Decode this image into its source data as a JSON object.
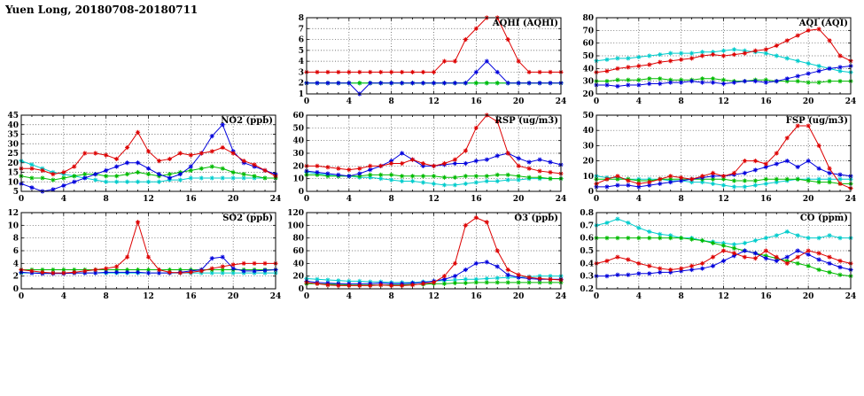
{
  "header": {
    "title": "Yuen Long, 20180708-20180711"
  },
  "colors": {
    "red": "#dd0000",
    "blue": "#0000dd",
    "green": "#00bb00",
    "cyan": "#00cccc",
    "axis": "#000000",
    "background": "#ffffff"
  },
  "chart_data": [
    {
      "id": "aqhi",
      "title": "AQHI (AQHI)",
      "type": "line",
      "row": 0,
      "col": 1,
      "ylim": [
        1,
        8
      ],
      "yticks": [
        1,
        2,
        3,
        4,
        5,
        6,
        7,
        8
      ],
      "xticks": [
        0,
        4,
        8,
        12,
        16,
        20,
        24
      ],
      "grid": "dotted",
      "series": [
        {
          "name": "cyan",
          "color": "#00cccc",
          "values": [
            2,
            2,
            2,
            2,
            2,
            2,
            2,
            2,
            2,
            2,
            2,
            2,
            2,
            2,
            2,
            2,
            2,
            2,
            2,
            2,
            2,
            2,
            2,
            2,
            2
          ]
        },
        {
          "name": "green",
          "color": "#00bb00",
          "values": [
            2,
            2,
            2,
            2,
            2,
            2,
            2,
            2,
            2,
            2,
            2,
            2,
            2,
            2,
            2,
            2,
            2,
            2,
            2,
            2,
            2,
            2,
            2,
            2,
            2
          ]
        },
        {
          "name": "blue",
          "color": "#0000dd",
          "values": [
            2,
            2,
            2,
            2,
            2,
            1,
            2,
            2,
            2,
            2,
            2,
            2,
            2,
            2,
            2,
            2,
            3,
            4,
            3,
            2,
            2,
            2,
            2,
            2,
            2
          ]
        },
        {
          "name": "red",
          "color": "#dd0000",
          "values": [
            3,
            3,
            3,
            3,
            3,
            3,
            3,
            3,
            3,
            3,
            3,
            3,
            3,
            4,
            4,
            6,
            7,
            8,
            8,
            6,
            4,
            3,
            3,
            3,
            3
          ]
        }
      ]
    },
    {
      "id": "aqi",
      "title": "AQI (AQI)",
      "type": "line",
      "row": 0,
      "col": 2,
      "ylim": [
        20,
        80
      ],
      "yticks": [
        20,
        30,
        40,
        50,
        60,
        70,
        80
      ],
      "xticks": [
        0,
        4,
        8,
        12,
        16,
        20,
        24
      ],
      "grid": "dotted",
      "series": [
        {
          "name": "cyan",
          "color": "#00cccc",
          "values": [
            46,
            47,
            48,
            48,
            49,
            50,
            51,
            52,
            52,
            52,
            53,
            53,
            54,
            55,
            54,
            53,
            52,
            50,
            48,
            46,
            44,
            42,
            40,
            38,
            37
          ]
        },
        {
          "name": "green",
          "color": "#00bb00",
          "values": [
            30,
            30,
            31,
            31,
            31,
            32,
            32,
            31,
            31,
            31,
            32,
            32,
            31,
            30,
            30,
            31,
            31,
            30,
            30,
            30,
            29,
            29,
            30,
            30,
            30
          ]
        },
        {
          "name": "blue",
          "color": "#0000dd",
          "values": [
            27,
            27,
            26,
            27,
            27,
            28,
            28,
            29,
            29,
            30,
            29,
            29,
            28,
            29,
            30,
            30,
            29,
            30,
            32,
            34,
            36,
            38,
            40,
            41,
            42
          ]
        },
        {
          "name": "red",
          "color": "#dd0000",
          "values": [
            37,
            38,
            40,
            41,
            42,
            43,
            45,
            46,
            47,
            48,
            50,
            51,
            50,
            51,
            52,
            54,
            55,
            58,
            62,
            66,
            70,
            71,
            62,
            50,
            46
          ]
        }
      ]
    },
    {
      "id": "no2",
      "title": "NO2 (ppb)",
      "type": "line",
      "row": 1,
      "col": 0,
      "ylim": [
        5,
        45
      ],
      "yticks": [
        5,
        10,
        15,
        20,
        25,
        30,
        35,
        40,
        45
      ],
      "xticks": [
        0,
        4,
        8,
        12,
        16,
        20,
        24
      ],
      "grid": "dotted",
      "series": [
        {
          "name": "cyan",
          "color": "#00cccc",
          "values": [
            21,
            19,
            17,
            15,
            14,
            13,
            12,
            11,
            10,
            10,
            10,
            10,
            10,
            10,
            11,
            11,
            12,
            12,
            12,
            12,
            12,
            12,
            12,
            12,
            12
          ]
        },
        {
          "name": "green",
          "color": "#00bb00",
          "values": [
            13,
            12,
            12,
            11,
            12,
            13,
            14,
            14,
            13,
            13,
            14,
            15,
            14,
            13,
            14,
            15,
            16,
            17,
            18,
            17,
            15,
            14,
            13,
            12,
            12
          ]
        },
        {
          "name": "blue",
          "color": "#0000dd",
          "values": [
            9,
            7,
            5,
            6,
            8,
            10,
            12,
            14,
            16,
            18,
            20,
            20,
            17,
            14,
            12,
            14,
            18,
            25,
            34,
            40,
            26,
            20,
            18,
            16,
            14
          ]
        },
        {
          "name": "red",
          "color": "#dd0000",
          "values": [
            17,
            17,
            16,
            14,
            15,
            18,
            25,
            25,
            24,
            22,
            28,
            36,
            26,
            21,
            22,
            25,
            24,
            25,
            26,
            28,
            25,
            21,
            19,
            16,
            13
          ]
        }
      ]
    },
    {
      "id": "rsp",
      "title": "RSP (ug/m3)",
      "type": "line",
      "row": 1,
      "col": 1,
      "ylim": [
        0,
        60
      ],
      "yticks": [
        0,
        10,
        20,
        30,
        40,
        50,
        60
      ],
      "xticks": [
        0,
        4,
        8,
        12,
        16,
        20,
        24
      ],
      "grid": "dotted",
      "series": [
        {
          "name": "cyan",
          "color": "#00cccc",
          "values": [
            15,
            14,
            13,
            12,
            12,
            11,
            11,
            10,
            9,
            8,
            8,
            7,
            6,
            5,
            5,
            6,
            7,
            8,
            8,
            9,
            9,
            10,
            10,
            10,
            10
          ]
        },
        {
          "name": "green",
          "color": "#00bb00",
          "values": [
            13,
            13,
            12,
            12,
            12,
            12,
            13,
            13,
            13,
            12,
            12,
            12,
            12,
            11,
            11,
            12,
            12,
            12,
            13,
            13,
            12,
            11,
            11,
            10,
            10
          ]
        },
        {
          "name": "blue",
          "color": "#0000dd",
          "values": [
            16,
            15,
            14,
            13,
            12,
            14,
            17,
            20,
            24,
            30,
            25,
            20,
            20,
            21,
            22,
            22,
            24,
            25,
            28,
            30,
            26,
            23,
            25,
            23,
            21
          ]
        },
        {
          "name": "red",
          "color": "#dd0000",
          "values": [
            20,
            20,
            19,
            18,
            17,
            18,
            20,
            20,
            22,
            22,
            25,
            22,
            20,
            22,
            25,
            32,
            50,
            60,
            55,
            30,
            20,
            18,
            16,
            15,
            14
          ]
        }
      ]
    },
    {
      "id": "fsp",
      "title": "FSP (ug/m3)",
      "type": "line",
      "row": 1,
      "col": 2,
      "ylim": [
        0,
        50
      ],
      "yticks": [
        0,
        10,
        20,
        30,
        40,
        50
      ],
      "xticks": [
        0,
        4,
        8,
        12,
        16,
        20,
        24
      ],
      "grid": "dotted",
      "series": [
        {
          "name": "cyan",
          "color": "#00cccc",
          "values": [
            10,
            9,
            9,
            8,
            8,
            8,
            8,
            7,
            7,
            6,
            6,
            5,
            4,
            3,
            3,
            4,
            5,
            6,
            7,
            8,
            8,
            8,
            8,
            8,
            8
          ]
        },
        {
          "name": "green",
          "color": "#00bb00",
          "values": [
            8,
            8,
            8,
            8,
            7,
            7,
            8,
            8,
            8,
            8,
            8,
            8,
            8,
            7,
            7,
            7,
            8,
            8,
            8,
            8,
            7,
            6,
            6,
            5,
            5
          ]
        },
        {
          "name": "blue",
          "color": "#0000dd",
          "values": [
            3,
            3,
            4,
            4,
            3,
            4,
            5,
            6,
            7,
            8,
            9,
            10,
            10,
            11,
            12,
            14,
            16,
            18,
            20,
            16,
            20,
            15,
            12,
            11,
            10
          ]
        },
        {
          "name": "red",
          "color": "#dd0000",
          "values": [
            5,
            8,
            10,
            7,
            5,
            6,
            8,
            10,
            9,
            8,
            10,
            12,
            10,
            12,
            20,
            20,
            18,
            25,
            35,
            43,
            43,
            30,
            15,
            5,
            2
          ]
        }
      ]
    },
    {
      "id": "so2",
      "title": "SO2 (ppb)",
      "type": "line",
      "row": 2,
      "col": 0,
      "ylim": [
        0,
        12
      ],
      "yticks": [
        0,
        2,
        4,
        6,
        8,
        10,
        12
      ],
      "xticks": [
        0,
        4,
        8,
        12,
        16,
        20,
        24
      ],
      "grid": "dotted",
      "series": [
        {
          "name": "cyan",
          "color": "#00cccc",
          "values": [
            2.5,
            2.5,
            2.5,
            2.5,
            2.5,
            2.5,
            2.5,
            2.5,
            2.5,
            2.5,
            2.5,
            2.5,
            2.5,
            2.5,
            2.5,
            2.5,
            2.5,
            2.5,
            2.5,
            2.5,
            2.5,
            2.5,
            2.5,
            2.5,
            2.5
          ]
        },
        {
          "name": "green",
          "color": "#00bb00",
          "values": [
            3,
            3,
            3,
            3,
            3,
            3,
            3,
            3,
            3,
            3,
            3,
            3,
            3,
            3,
            3,
            3,
            3,
            3,
            3,
            3,
            3,
            3,
            3,
            3,
            3
          ]
        },
        {
          "name": "blue",
          "color": "#0000dd",
          "values": [
            2.6,
            2.5,
            2.4,
            2.4,
            2.4,
            2.5,
            2.5,
            2.5,
            2.6,
            2.6,
            2.6,
            2.6,
            2.5,
            2.5,
            2.5,
            2.6,
            2.8,
            3,
            4.8,
            5,
            3.2,
            2.8,
            2.8,
            2.9,
            3
          ]
        },
        {
          "name": "red",
          "color": "#dd0000",
          "values": [
            3,
            2.8,
            2.6,
            2.5,
            2.5,
            2.6,
            2.8,
            3,
            3.2,
            3.5,
            5,
            10.5,
            5,
            3,
            2.6,
            2.5,
            2.6,
            2.8,
            3.2,
            3.5,
            3.8,
            4,
            4,
            4,
            4
          ]
        }
      ]
    },
    {
      "id": "o3",
      "title": "O3 (ppb)",
      "type": "line",
      "row": 2,
      "col": 1,
      "ylim": [
        0,
        120
      ],
      "yticks": [
        0,
        20,
        40,
        60,
        80,
        100,
        120
      ],
      "xticks": [
        0,
        4,
        8,
        12,
        16,
        20,
        24
      ],
      "grid": "dotted",
      "series": [
        {
          "name": "cyan",
          "color": "#00cccc",
          "values": [
            16,
            15,
            14,
            13,
            12,
            12,
            11,
            11,
            10,
            10,
            10,
            11,
            12,
            13,
            14,
            15,
            15,
            16,
            17,
            18,
            18,
            19,
            20,
            20,
            20
          ]
        },
        {
          "name": "green",
          "color": "#00bb00",
          "values": [
            8,
            8,
            7,
            7,
            6,
            6,
            6,
            6,
            6,
            6,
            7,
            7,
            8,
            8,
            9,
            9,
            10,
            10,
            10,
            10,
            10,
            10,
            10,
            10,
            10
          ]
        },
        {
          "name": "blue",
          "color": "#0000dd",
          "values": [
            12,
            10,
            9,
            8,
            8,
            8,
            8,
            9,
            8,
            8,
            9,
            10,
            12,
            15,
            20,
            30,
            40,
            42,
            35,
            22,
            18,
            16,
            15,
            15,
            15
          ]
        },
        {
          "name": "red",
          "color": "#dd0000",
          "values": [
            10,
            8,
            6,
            5,
            5,
            5,
            5,
            6,
            5,
            5,
            6,
            8,
            10,
            20,
            40,
            100,
            112,
            105,
            60,
            30,
            22,
            18,
            16,
            15,
            14
          ]
        }
      ]
    },
    {
      "id": "co",
      "title": "CO (ppm)",
      "type": "line",
      "row": 2,
      "col": 2,
      "ylim": [
        0.2,
        0.8
      ],
      "yticks": [
        0.2,
        0.3,
        0.4,
        0.5,
        0.6,
        0.7,
        0.8
      ],
      "xticks": [
        0,
        4,
        8,
        12,
        16,
        20,
        24
      ],
      "grid": "dotted",
      "series": [
        {
          "name": "cyan",
          "color": "#00cccc",
          "values": [
            0.7,
            0.72,
            0.75,
            0.72,
            0.68,
            0.65,
            0.63,
            0.62,
            0.6,
            0.6,
            0.58,
            0.57,
            0.56,
            0.55,
            0.56,
            0.58,
            0.6,
            0.62,
            0.65,
            0.62,
            0.6,
            0.6,
            0.62,
            0.6,
            0.6
          ]
        },
        {
          "name": "green",
          "color": "#00bb00",
          "values": [
            0.6,
            0.6,
            0.6,
            0.6,
            0.6,
            0.6,
            0.6,
            0.6,
            0.6,
            0.59,
            0.58,
            0.56,
            0.54,
            0.52,
            0.5,
            0.48,
            0.46,
            0.44,
            0.42,
            0.4,
            0.38,
            0.35,
            0.33,
            0.31,
            0.3
          ]
        },
        {
          "name": "blue",
          "color": "#0000dd",
          "values": [
            0.3,
            0.3,
            0.31,
            0.31,
            0.32,
            0.32,
            0.33,
            0.33,
            0.34,
            0.35,
            0.36,
            0.38,
            0.42,
            0.46,
            0.5,
            0.48,
            0.44,
            0.42,
            0.45,
            0.5,
            0.47,
            0.43,
            0.4,
            0.37,
            0.35
          ]
        },
        {
          "name": "red",
          "color": "#dd0000",
          "values": [
            0.4,
            0.42,
            0.45,
            0.43,
            0.4,
            0.38,
            0.36,
            0.35,
            0.36,
            0.38,
            0.4,
            0.45,
            0.5,
            0.48,
            0.45,
            0.44,
            0.5,
            0.45,
            0.4,
            0.45,
            0.5,
            0.48,
            0.45,
            0.42,
            0.4
          ]
        }
      ]
    }
  ]
}
